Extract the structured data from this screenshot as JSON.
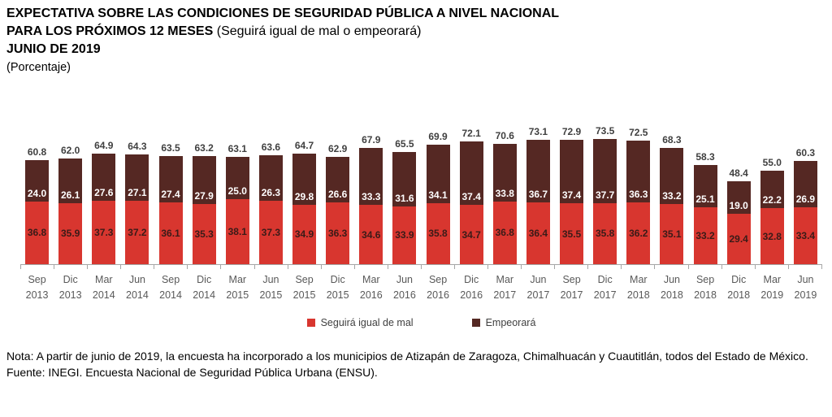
{
  "header": {
    "title_line1": "EXPECTATIVA SOBRE LAS CONDICIONES DE SEGURIDAD PÚBLICA A NIVEL NACIONAL",
    "title_line2_bold": "PARA LOS PRÓXIMOS 12 MESES",
    "title_line2_normal": "(Seguirá igual de mal o empeorará)",
    "title_line3": "JUNIO DE 2019",
    "title_line4": "(Porcentaje)"
  },
  "chart_data": {
    "type": "bar",
    "stacked": true,
    "title": "Expectativa sobre las condiciones de seguridad pública a nivel nacional para los próximos 12 meses",
    "ylabel": "Porcentaje",
    "ylim": [
      0,
      80
    ],
    "grid": false,
    "legend_position": "bottom",
    "value_format": "one-decimal",
    "categories": [
      {
        "month": "Sep",
        "year": "2013"
      },
      {
        "month": "Dic",
        "year": "2013"
      },
      {
        "month": "Mar",
        "year": "2014"
      },
      {
        "month": "Jun",
        "year": "2014"
      },
      {
        "month": "Sep",
        "year": "2014"
      },
      {
        "month": "Dic",
        "year": "2014"
      },
      {
        "month": "Mar",
        "year": "2015"
      },
      {
        "month": "Jun",
        "year": "2015"
      },
      {
        "month": "Sep",
        "year": "2015"
      },
      {
        "month": "Dic",
        "year": "2015"
      },
      {
        "month": "Mar",
        "year": "2016"
      },
      {
        "month": "Jun",
        "year": "2016"
      },
      {
        "month": "Sep",
        "year": "2016"
      },
      {
        "month": "Dic",
        "year": "2016"
      },
      {
        "month": "Mar",
        "year": "2017"
      },
      {
        "month": "Jun",
        "year": "2017"
      },
      {
        "month": "Sep",
        "year": "2017"
      },
      {
        "month": "Dic",
        "year": "2017"
      },
      {
        "month": "Mar",
        "year": "2018"
      },
      {
        "month": "Jun",
        "year": "2018"
      },
      {
        "month": "Sep",
        "year": "2018"
      },
      {
        "month": "Dic",
        "year": "2018"
      },
      {
        "month": "Mar",
        "year": "2019"
      },
      {
        "month": "Jun",
        "year": "2019"
      }
    ],
    "series": [
      {
        "name": "Seguirá igual de mal",
        "color": "#d8362f",
        "label_color": "#3a1b18",
        "values": [
          36.8,
          35.9,
          37.3,
          37.2,
          36.1,
          35.3,
          38.1,
          37.3,
          34.9,
          36.3,
          34.6,
          33.9,
          35.8,
          34.7,
          36.8,
          36.4,
          35.5,
          35.8,
          36.2,
          35.1,
          33.2,
          29.4,
          32.8,
          33.4
        ]
      },
      {
        "name": "Empeorará",
        "color": "#552823",
        "label_color": "#ffffff",
        "values": [
          24.0,
          26.1,
          27.6,
          27.1,
          27.4,
          27.9,
          25.0,
          26.3,
          29.8,
          26.6,
          33.3,
          31.6,
          34.1,
          37.4,
          33.8,
          36.7,
          37.4,
          37.7,
          36.3,
          33.2,
          25.1,
          19.0,
          22.2,
          26.9
        ]
      }
    ],
    "totals": [
      60.8,
      62.0,
      64.9,
      64.3,
      63.5,
      63.2,
      63.1,
      63.6,
      64.7,
      62.9,
      67.9,
      65.5,
      69.9,
      72.1,
      70.6,
      73.1,
      72.9,
      73.5,
      72.5,
      68.3,
      58.3,
      48.4,
      55.0,
      60.3
    ]
  },
  "notes": {
    "note": "Nota: A partir de junio de 2019, la encuesta ha incorporado a los municipios de Atizapán de Zaragoza, Chimalhuacán y Cuautitlán, todos del Estado de México.",
    "source": "Fuente: INEGI. Encuesta Nacional de Seguridad Pública Urbana (ENSU)."
  }
}
